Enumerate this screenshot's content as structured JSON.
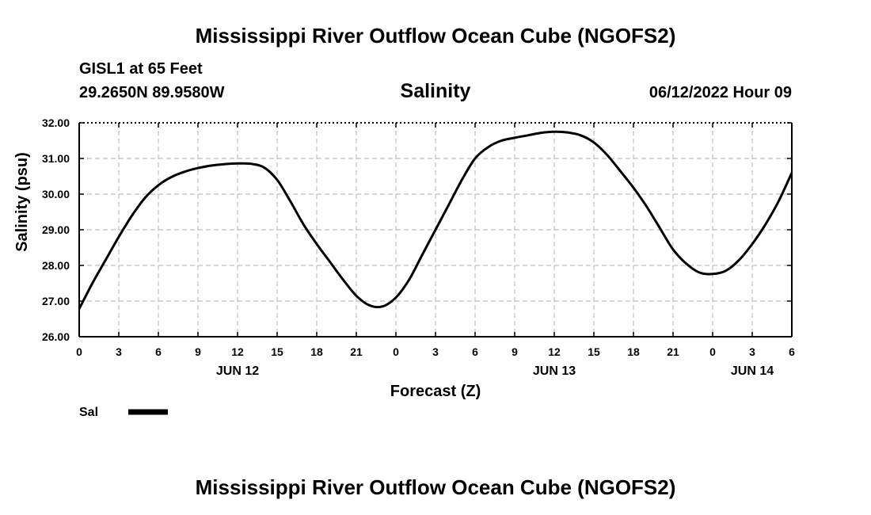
{
  "header": {
    "title": "Mississippi River Outflow Ocean Cube (NGOFS2)",
    "station": "GISL1 at 65 Feet",
    "coordinates": "29.2650N  89.9580W",
    "subtitle": "Salinity",
    "datetime": "06/12/2022 Hour 09"
  },
  "footer": {
    "title": "Mississippi River Outflow Ocean Cube (NGOFS2)"
  },
  "colors": {
    "line": "#000000",
    "grid": "#bfbfbf"
  },
  "chart_data": {
    "type": "line",
    "title": "Salinity",
    "xlabel": "Forecast (Z)",
    "ylabel": "Salinity (psu)",
    "ylim": [
      26.0,
      32.0
    ],
    "xlim_hours": [
      0,
      54
    ],
    "y_ticks": [
      "26.00",
      "27.00",
      "28.00",
      "29.00",
      "30.00",
      "31.00",
      "32.00"
    ],
    "x_ticks": [
      {
        "hour": 0,
        "label": "0"
      },
      {
        "hour": 3,
        "label": "3"
      },
      {
        "hour": 6,
        "label": "6"
      },
      {
        "hour": 9,
        "label": "9"
      },
      {
        "hour": 12,
        "label": "12"
      },
      {
        "hour": 15,
        "label": "15"
      },
      {
        "hour": 18,
        "label": "18"
      },
      {
        "hour": 21,
        "label": "21"
      },
      {
        "hour": 24,
        "label": "0"
      },
      {
        "hour": 27,
        "label": "3"
      },
      {
        "hour": 30,
        "label": "6"
      },
      {
        "hour": 33,
        "label": "9"
      },
      {
        "hour": 36,
        "label": "12"
      },
      {
        "hour": 39,
        "label": "15"
      },
      {
        "hour": 42,
        "label": "18"
      },
      {
        "hour": 45,
        "label": "21"
      },
      {
        "hour": 48,
        "label": "0"
      },
      {
        "hour": 51,
        "label": "3"
      },
      {
        "hour": 54,
        "label": "6"
      }
    ],
    "date_labels": [
      {
        "hour": 12,
        "label": "JUN 12"
      },
      {
        "hour": 36,
        "label": "JUN 13"
      },
      {
        "hour": 51,
        "label": "JUN 14"
      }
    ],
    "series": [
      {
        "name": "Sal",
        "x": [
          0,
          1,
          2,
          3,
          4,
          5,
          6,
          7,
          8,
          9,
          10,
          11,
          12,
          13,
          14,
          15,
          16,
          17,
          18,
          19,
          20,
          21,
          22,
          23,
          24,
          25,
          26,
          27,
          28,
          29,
          30,
          31,
          32,
          33,
          34,
          35,
          36,
          37,
          38,
          39,
          40,
          41,
          42,
          43,
          44,
          45,
          46,
          47,
          48,
          49,
          50,
          51,
          52,
          53,
          54
        ],
        "values": [
          26.78,
          27.5,
          28.15,
          28.8,
          29.4,
          29.9,
          30.25,
          30.48,
          30.63,
          30.73,
          30.8,
          30.84,
          30.86,
          30.85,
          30.75,
          30.4,
          29.8,
          29.15,
          28.6,
          28.1,
          27.6,
          27.15,
          26.88,
          26.85,
          27.1,
          27.6,
          28.3,
          29.0,
          29.7,
          30.4,
          31.0,
          31.32,
          31.5,
          31.58,
          31.65,
          31.72,
          31.75,
          31.73,
          31.65,
          31.45,
          31.1,
          30.65,
          30.18,
          29.65,
          29.05,
          28.45,
          28.05,
          27.8,
          27.76,
          27.85,
          28.15,
          28.6,
          29.15,
          29.8,
          30.6
        ]
      }
    ],
    "legend": {
      "label": "Sal",
      "position": "bottom-left"
    }
  }
}
